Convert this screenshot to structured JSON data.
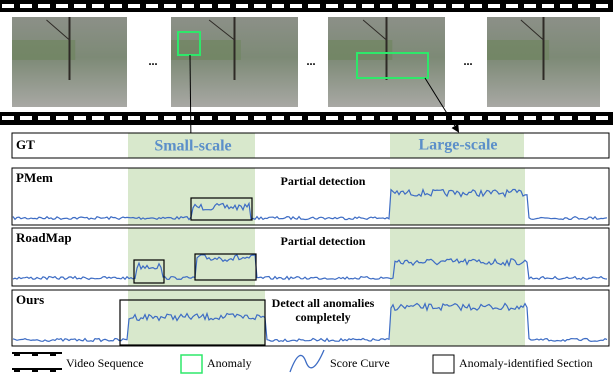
{
  "frames": {
    "ellipses": [
      "...",
      "...",
      "..."
    ]
  },
  "gt": {
    "label": "GT",
    "small": "Small-scale",
    "large": "Large-scale"
  },
  "panels": [
    {
      "label": "PMem",
      "note": [
        "Partial detection"
      ]
    },
    {
      "label": "RoadMap",
      "note": [
        "Partial detection"
      ]
    },
    {
      "label": "Ours",
      "note": [
        "Detect all anomalies",
        "completely"
      ]
    }
  ],
  "legend": [
    "Video Sequence",
    "Anomaly",
    "Score Curve",
    "Anomaly-identified Section"
  ]
}
